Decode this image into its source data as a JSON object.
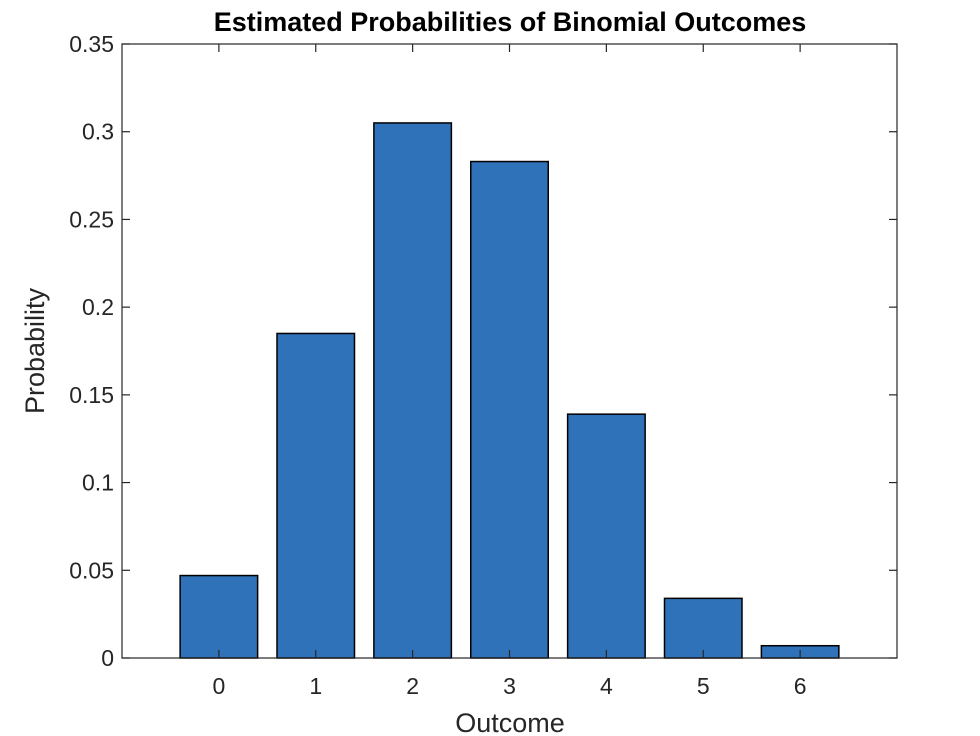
{
  "chart_data": {
    "type": "bar",
    "title": "Estimated Probabilities of Binomial Outcomes",
    "xlabel": "Outcome",
    "ylabel": "Probability",
    "categories": [
      "0",
      "1",
      "2",
      "3",
      "4",
      "5",
      "6"
    ],
    "x": [
      0,
      1,
      2,
      3,
      4,
      5,
      6
    ],
    "values": [
      0.047,
      0.185,
      0.305,
      0.283,
      0.139,
      0.034,
      0.007
    ],
    "xlim": [
      -1,
      7
    ],
    "ylim": [
      0,
      0.35
    ],
    "yticks": [
      0,
      0.05,
      0.1,
      0.15,
      0.2,
      0.25,
      0.3,
      0.35
    ],
    "ytick_labels": [
      "0",
      "0.05",
      "0.1",
      "0.15",
      "0.2",
      "0.25",
      "0.3",
      "0.35"
    ],
    "bar_color": "#3072b9",
    "grid": false,
    "legend": false
  }
}
